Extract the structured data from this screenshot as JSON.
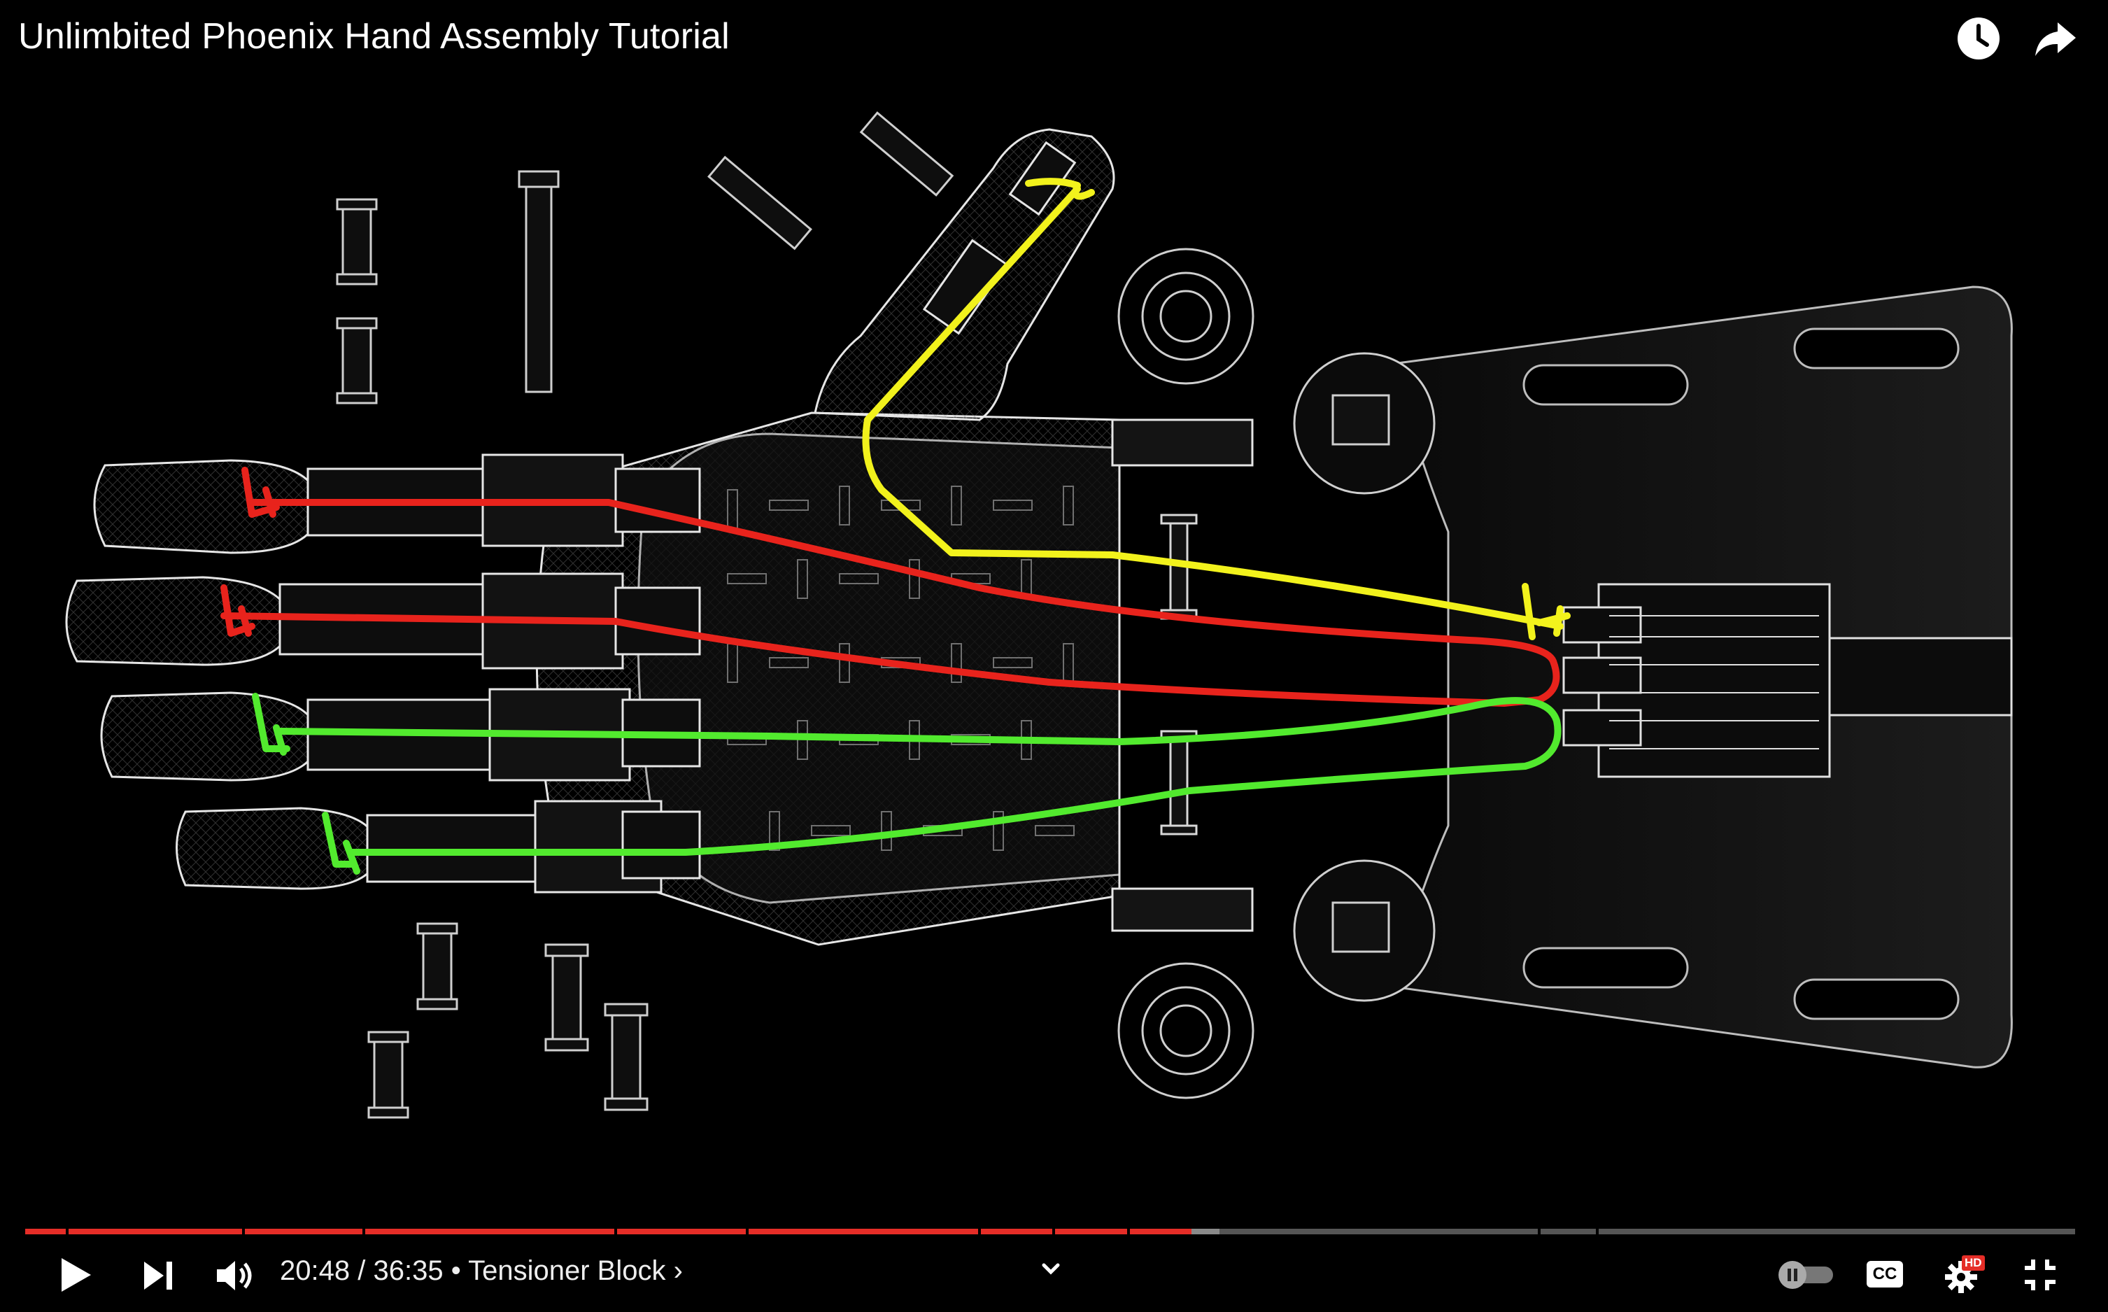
{
  "video": {
    "title": "Unlimbited Phoenix Hand Assembly Tutorial",
    "current_time": "20:48",
    "separator": "/",
    "duration": "36:35",
    "bullet": "•",
    "chapter": "Tensioner Block",
    "chapter_arrow": "›",
    "progress": 0.569
  },
  "colors": {
    "progress_played": "#e52d27",
    "progress_buffered": "#8a8a8a",
    "progress_track": "#555555",
    "string_red": "#e8231c",
    "string_yellow": "#f2f21c",
    "string_green": "#52ea2e",
    "hd_badge": "#e52d27"
  },
  "icons": {
    "top": [
      "watch-later-icon",
      "share-icon"
    ],
    "left_controls": [
      "play-icon",
      "next-icon",
      "volume-icon"
    ],
    "right_controls": [
      "autoplay-toggle-icon",
      "captions-icon",
      "settings-icon",
      "exit-fullscreen-icon"
    ],
    "chapter": "chevron-down-icon"
  },
  "badges": {
    "settings": "HD",
    "captions": "CC"
  }
}
